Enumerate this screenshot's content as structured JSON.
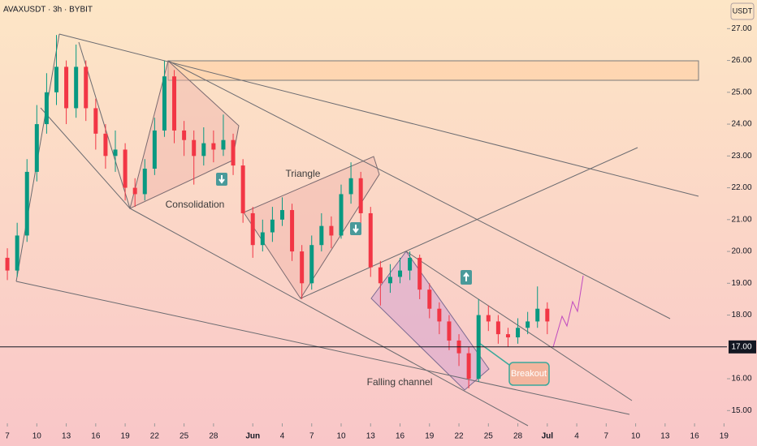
{
  "chart_data": {
    "type": "candlestick",
    "title": "AVAXUSDT · 3h · BYBIT",
    "y_axis_label": "USDT",
    "x": [
      0,
      1,
      2,
      3,
      4,
      5,
      6,
      7,
      8,
      9,
      10,
      11,
      12,
      13,
      14,
      15,
      16,
      17,
      18,
      19,
      20,
      21,
      22,
      23,
      24,
      25,
      26,
      27,
      28,
      29,
      30,
      31,
      32,
      33,
      34,
      35,
      36,
      37,
      38,
      39,
      40,
      41,
      42,
      43,
      44,
      45,
      46,
      47,
      48,
      49,
      50,
      51,
      52,
      53,
      54,
      55
    ],
    "ohlc": [
      [
        19.8,
        20.1,
        19.1,
        19.4
      ],
      [
        19.4,
        20.9,
        19.2,
        20.5
      ],
      [
        20.5,
        22.9,
        20.3,
        22.5
      ],
      [
        22.5,
        24.6,
        22.2,
        24.0
      ],
      [
        24.0,
        25.6,
        23.7,
        25.0
      ],
      [
        25.0,
        26.8,
        24.6,
        25.8
      ],
      [
        25.8,
        26.0,
        24.0,
        24.5
      ],
      [
        24.5,
        26.5,
        24.2,
        25.8
      ],
      [
        25.8,
        26.0,
        24.1,
        24.5
      ],
      [
        24.5,
        24.8,
        23.2,
        23.7
      ],
      [
        23.7,
        24.0,
        22.6,
        23.0
      ],
      [
        23.0,
        23.8,
        22.5,
        23.2
      ],
      [
        23.2,
        23.4,
        21.6,
        22.0
      ],
      [
        22.0,
        22.3,
        21.4,
        21.8
      ],
      [
        21.8,
        22.9,
        21.6,
        22.6
      ],
      [
        22.6,
        24.2,
        22.4,
        23.8
      ],
      [
        23.8,
        26.0,
        23.6,
        25.5
      ],
      [
        25.5,
        25.7,
        23.4,
        23.8
      ],
      [
        23.8,
        24.1,
        23.0,
        23.5
      ],
      [
        23.5,
        23.8,
        22.1,
        23.0
      ],
      [
        23.0,
        23.9,
        22.7,
        23.4
      ],
      [
        23.4,
        23.8,
        22.8,
        23.2
      ],
      [
        23.2,
        24.3,
        23.0,
        23.5
      ],
      [
        23.5,
        23.7,
        22.4,
        22.7
      ],
      [
        22.7,
        22.9,
        20.9,
        21.2
      ],
      [
        21.2,
        21.4,
        19.8,
        20.2
      ],
      [
        20.2,
        21.0,
        20.0,
        20.6
      ],
      [
        20.6,
        21.4,
        20.3,
        21.0
      ],
      [
        21.0,
        21.7,
        20.8,
        21.3
      ],
      [
        21.3,
        21.5,
        19.7,
        20.0
      ],
      [
        20.0,
        20.2,
        18.5,
        19.0
      ],
      [
        19.0,
        20.5,
        18.8,
        20.2
      ],
      [
        20.2,
        21.2,
        20.0,
        20.8
      ],
      [
        20.8,
        21.1,
        20.1,
        20.5
      ],
      [
        20.5,
        22.1,
        20.4,
        21.8
      ],
      [
        21.8,
        22.8,
        21.5,
        22.3
      ],
      [
        22.3,
        22.5,
        20.9,
        21.2
      ],
      [
        21.2,
        21.4,
        19.2,
        19.5
      ],
      [
        19.5,
        19.7,
        18.3,
        19.0
      ],
      [
        19.0,
        19.6,
        18.7,
        19.2
      ],
      [
        19.2,
        19.8,
        19.0,
        19.4
      ],
      [
        19.4,
        20.0,
        19.1,
        19.8
      ],
      [
        19.8,
        19.9,
        18.5,
        18.8
      ],
      [
        18.8,
        19.0,
        17.9,
        18.2
      ],
      [
        18.2,
        18.4,
        17.4,
        17.8
      ],
      [
        17.8,
        18.0,
        16.9,
        17.2
      ],
      [
        17.2,
        17.4,
        16.4,
        16.8
      ],
      [
        16.8,
        17.0,
        15.7,
        16.0
      ],
      [
        16.0,
        18.5,
        15.9,
        18.0
      ],
      [
        18.0,
        18.3,
        17.5,
        17.8
      ],
      [
        17.8,
        18.0,
        17.1,
        17.4
      ],
      [
        17.4,
        17.6,
        17.0,
        17.3
      ],
      [
        17.3,
        17.9,
        17.1,
        17.6
      ],
      [
        17.6,
        18.1,
        17.4,
        17.8
      ],
      [
        17.8,
        18.9,
        17.6,
        18.2
      ],
      [
        18.2,
        18.4,
        17.4,
        17.8
      ]
    ],
    "up_color": "#089981",
    "down_color": "#f23645",
    "xlim": [
      -0.75,
      73.3
    ],
    "xticks": [
      {
        "value": 0,
        "label": "7"
      },
      {
        "value": 3,
        "label": "10"
      },
      {
        "value": 6,
        "label": "13"
      },
      {
        "value": 9,
        "label": "16"
      },
      {
        "value": 12,
        "label": "19"
      },
      {
        "value": 15,
        "label": "22"
      },
      {
        "value": 18,
        "label": "25"
      },
      {
        "value": 21,
        "label": "28"
      },
      {
        "value": 25,
        "label": "Jun"
      },
      {
        "value": 28,
        "label": "4"
      },
      {
        "value": 31,
        "label": "7"
      },
      {
        "value": 34,
        "label": "10"
      },
      {
        "value": 37,
        "label": "13"
      },
      {
        "value": 40,
        "label": "16"
      },
      {
        "value": 43,
        "label": "19"
      },
      {
        "value": 46,
        "label": "22"
      },
      {
        "value": 49,
        "label": "25"
      },
      {
        "value": 52,
        "label": "28"
      },
      {
        "value": 55,
        "label": "Jul"
      },
      {
        "value": 58,
        "label": "4"
      },
      {
        "value": 61,
        "label": "7"
      },
      {
        "value": 64,
        "label": "10"
      },
      {
        "value": 67,
        "label": "13"
      },
      {
        "value": 70,
        "label": "16"
      },
      {
        "value": 73,
        "label": "19"
      }
    ],
    "ylim": [
      14.6,
      27.9
    ],
    "yticks": [
      {
        "value": 15,
        "label": "15.00"
      },
      {
        "value": 16,
        "label": "16.00"
      },
      {
        "value": 18,
        "label": "18.00"
      },
      {
        "value": 19,
        "label": "19.00"
      },
      {
        "value": 20,
        "label": "20.00"
      },
      {
        "value": 21,
        "label": "21.00"
      },
      {
        "value": 22,
        "label": "22.00"
      },
      {
        "value": 23,
        "label": "23.00"
      },
      {
        "value": 24,
        "label": "24.00"
      },
      {
        "value": 25,
        "label": "25.00"
      },
      {
        "value": 26,
        "label": "26.00"
      },
      {
        "value": 27,
        "label": "27.00"
      }
    ],
    "price_line": {
      "value": 17,
      "label": "17.00"
    },
    "annotations": [
      "Consolidation",
      "Triangle",
      "Falling channel",
      "Breakout"
    ]
  }
}
